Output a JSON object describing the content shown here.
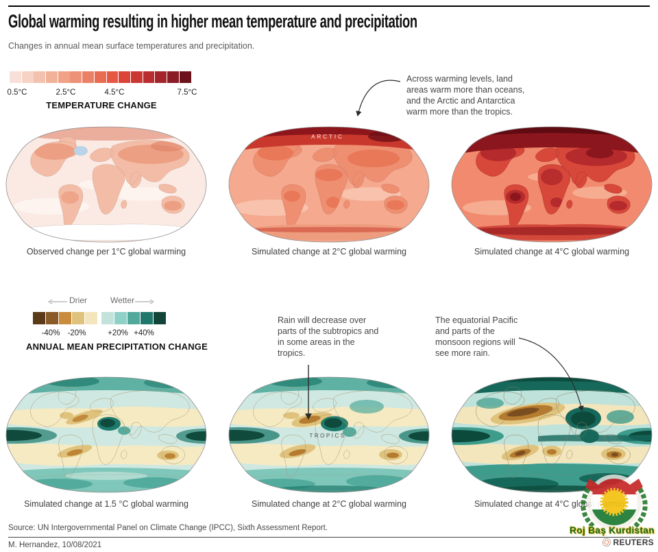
{
  "header": {
    "title": "Global warming resulting in higher mean temperature and precipitation",
    "subtitle": "Changes in annual mean surface temperatures and precipitation."
  },
  "temperature_section": {
    "legend": {
      "title": "TEMPERATURE CHANGE",
      "tick_labels": [
        "0.5°C",
        "2.5°C",
        "4.5°C",
        "7.5°C"
      ],
      "colors": [
        "#F7E0D8",
        "#F6D3C4",
        "#F3C2AE",
        "#F1B29A",
        "#EFA287",
        "#ED9277",
        "#EA8166",
        "#E86C52",
        "#E55844",
        "#DC4438",
        "#CB3733",
        "#B92D30",
        "#A3242B",
        "#891C25",
        "#6B121C"
      ]
    },
    "annotation": "Across warming levels, land areas warm more than oceans, and the Arctic and Antarctica warm more than the tropics.",
    "maps": [
      {
        "caption": "Observed change per 1°C global warming",
        "label": ""
      },
      {
        "caption": "Simulated change at 2°C global warming",
        "label": "ARCTIC"
      },
      {
        "caption": "Simulated change at 4°C global warming",
        "label": ""
      }
    ]
  },
  "precipitation_section": {
    "legend": {
      "title": "ANNUAL MEAN PRECIPITATION CHANGE",
      "drier_label": "Drier",
      "wetter_label": "Wetter",
      "tick_labels": [
        "-40%",
        "-20%",
        "+20%",
        "+40%"
      ],
      "colors": [
        "#5B3A17",
        "#8A5A28",
        "#C88C3C",
        "#DFC27C",
        "#F3E6BC",
        "#C3E2DC",
        "#8FD1C6",
        "#51A99C",
        "#20776C",
        "#12443A"
      ]
    },
    "annotations": [
      "Rain will decrease over parts of the subtropics and in some areas in the tropics.",
      "The equatorial Pacific and parts of the monsoon regions will see more rain."
    ],
    "maps": [
      {
        "caption": "Simulated change at 1.5 °C global warming",
        "label": ""
      },
      {
        "caption": "Simulated change at 2°C global warming",
        "label": "TROPICS"
      },
      {
        "caption": "Simulated change at 4°C global warming",
        "label": ""
      }
    ]
  },
  "footer": {
    "source": "Source: UN Intergovernmental Panel on Climate Change (IPCC), Sixth Assessment Report.",
    "byline": "M. Hernandez, 10/08/2021",
    "brand": "REUTERS"
  },
  "watermark": {
    "text": "Roj Baş Kurdistan"
  },
  "palettes": {
    "t1": {
      "ocean": "#FBEAE3",
      "oceanlight": "#FDF4F0",
      "land": "#F3BCA6",
      "patch": "#EC9F82",
      "dark": "#E08163",
      "arctic": "#DC7257",
      "blue": "#BAD3E6",
      "antarctica": "#FFFFFF",
      "coast": "#C79E8B"
    },
    "t2": {
      "ocean": "#F5A98E",
      "oceanlight": "#F8C2AD",
      "land": "#EF8F72",
      "patch": "#E87857",
      "dark": "#C8382C",
      "arctic": "#8D151C",
      "darkest": "#6E0F16",
      "antband": "#EE9C7E",
      "coast": "#C4705C"
    },
    "t3": {
      "ocean": "#F18A6E",
      "oceanlight": "#F5AC91",
      "land": "#D7473A",
      "core": "#B52A2C",
      "coredark": "#8C161D",
      "arctic": "#600A12",
      "antband": "#D2483B",
      "coast": "#9E2F28"
    },
    "p1": {
      "ocean": "#CFE8E1",
      "cream": "#F5EAC2",
      "tan": "#DFC27C",
      "brown": "#BE8435",
      "darkbrown": "#8A5A28",
      "teal": "#7FC7BA",
      "midteal": "#52AB9D",
      "darkteal": "#1E7A6C",
      "darkest": "#0F4A3C",
      "coast": "#A89878"
    },
    "p2": {
      "ocean": "#CFE8E1",
      "cream": "#F5EAC2",
      "tan": "#DFC27C",
      "brown": "#B57B2F",
      "darkbrown": "#8A5A28",
      "teal": "#7FC7BA",
      "midteal": "#52AB9D",
      "darkteal": "#1E7A6C",
      "darkest": "#0F4A3C",
      "coast": "#A89878"
    },
    "p3": {
      "ocean": "#BFE2DA",
      "cream": "#F3E6BC",
      "tan": "#DFC27C",
      "brown": "#B57B2F",
      "darkbrown": "#7A4E1F",
      "teal": "#6FC0B2",
      "midteal": "#3E9C8D",
      "darkteal": "#16685B",
      "darkest": "#0C4A3C",
      "coast": "#8F8060"
    }
  },
  "chart_data": [
    {
      "type": "heatmap",
      "subtype": "world-choropleth-maps",
      "title": "TEMPERATURE CHANGE",
      "unit": "°C",
      "colorbar_values": [
        0.5,
        1.0,
        1.5,
        2.0,
        2.5,
        3.0,
        3.5,
        4.0,
        4.5,
        5.0,
        5.5,
        6.0,
        6.5,
        7.0,
        7.5
      ],
      "colorbar_colors": [
        "#F7E0D8",
        "#F6D3C4",
        "#F3C2AE",
        "#F1B29A",
        "#EFA287",
        "#ED9277",
        "#EA8166",
        "#E86C52",
        "#E55844",
        "#DC4438",
        "#CB3733",
        "#B92D30",
        "#A3242B",
        "#891C25",
        "#6B121C"
      ],
      "colorbar_tick_labels": [
        "0.5°C",
        "2.5°C",
        "4.5°C",
        "7.5°C"
      ],
      "panels": [
        "Observed change per 1°C global warming",
        "Simulated change at 2°C global warming",
        "Simulated change at 4°C global warming"
      ],
      "annotation": "Across warming levels, land areas warm more than oceans, and the Arctic and Antarctica warm more than the tropics.",
      "map_label": "ARCTIC"
    },
    {
      "type": "heatmap",
      "subtype": "world-choropleth-maps",
      "title": "ANNUAL MEAN PRECIPITATION CHANGE",
      "unit": "%",
      "colorbar_bin_centers": [
        -45,
        -35,
        -25,
        -15,
        -5,
        5,
        15,
        25,
        35,
        45
      ],
      "colorbar_colors": [
        "#5B3A17",
        "#8A5A28",
        "#C88C3C",
        "#DFC27C",
        "#F3E6BC",
        "#C3E2DC",
        "#8FD1C6",
        "#51A99C",
        "#20776C",
        "#12443A"
      ],
      "colorbar_tick_labels": [
        "-40%",
        "-20%",
        "+20%",
        "+40%"
      ],
      "direction_labels": [
        "Drier",
        "Wetter"
      ],
      "panels": [
        "Simulated change at 1.5 °C global warming",
        "Simulated change at 2°C global warming",
        "Simulated change at 4°C global warming"
      ],
      "annotations": [
        "Rain will decrease over parts of the subtropics and in some areas in the tropics.",
        "The equatorial Pacific and parts of the monsoon regions will see more rain."
      ],
      "map_label": "TROPICS"
    }
  ]
}
